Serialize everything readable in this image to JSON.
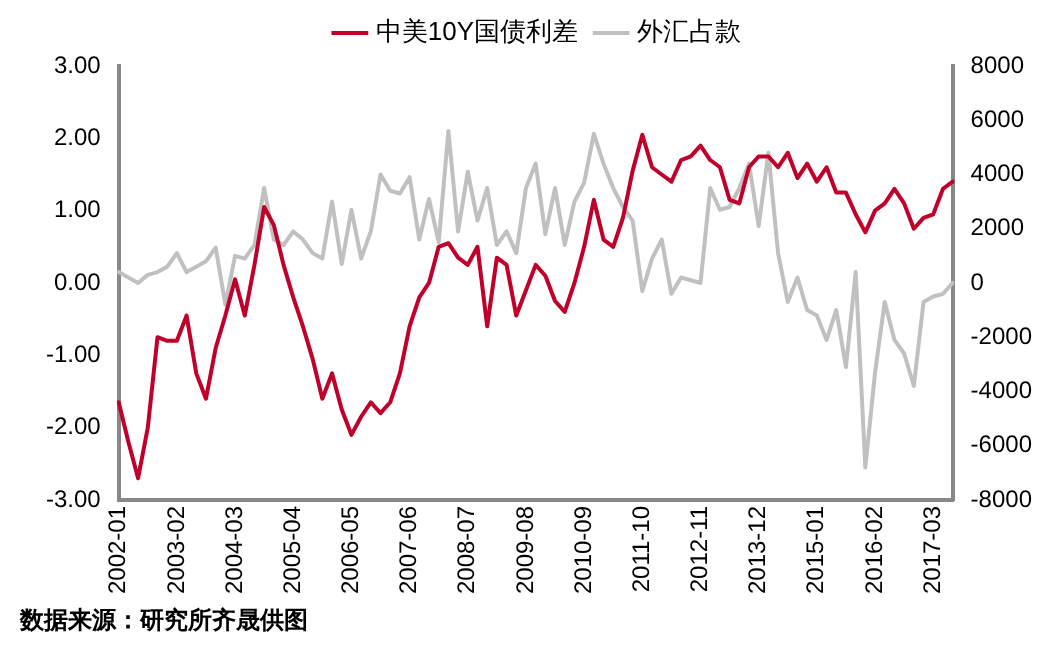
{
  "chart_data": {
    "type": "line",
    "categories": [
      "2002-01",
      null,
      null,
      null,
      null,
      null,
      "2003-02",
      null,
      null,
      null,
      null,
      null,
      "2004-03",
      null,
      null,
      null,
      null,
      null,
      "2005-04",
      null,
      null,
      null,
      null,
      null,
      "2006-05",
      null,
      null,
      null,
      null,
      null,
      "2007-06",
      null,
      null,
      null,
      null,
      null,
      "2008-07",
      null,
      null,
      null,
      null,
      null,
      "2009-08",
      null,
      null,
      null,
      null,
      null,
      "2010-09",
      null,
      null,
      null,
      null,
      null,
      "2011-10",
      null,
      null,
      null,
      null,
      null,
      "2012-11",
      null,
      null,
      null,
      null,
      null,
      "2013-12",
      null,
      null,
      null,
      null,
      null,
      "2015-01",
      null,
      null,
      null,
      null,
      null,
      "2016-02",
      null,
      null,
      null,
      null,
      null,
      "2017-03",
      null,
      null
    ],
    "series": [
      {
        "name": "中美10Y国债利差",
        "color": "#c0002a",
        "values": [
          -1.65,
          -2.2,
          -2.7,
          -2.0,
          -0.75,
          -0.8,
          -0.8,
          -0.45,
          -1.25,
          -1.6,
          -0.9,
          -0.45,
          0.05,
          -0.45,
          0.25,
          1.05,
          0.8,
          0.25,
          -0.2,
          -0.6,
          -1.05,
          -1.6,
          -1.25,
          -1.75,
          -2.1,
          -1.85,
          -1.65,
          -1.8,
          -1.65,
          -1.25,
          -0.6,
          -0.2,
          0.0,
          0.5,
          0.55,
          0.35,
          0.25,
          0.5,
          -0.6,
          0.35,
          0.25,
          -0.45,
          -0.1,
          0.25,
          0.1,
          -0.25,
          -0.4,
          0.0,
          0.5,
          1.15,
          0.6,
          0.5,
          0.9,
          1.55,
          2.05,
          1.6,
          1.5,
          1.4,
          1.7,
          1.75,
          1.9,
          1.7,
          1.6,
          1.15,
          1.1,
          1.6,
          1.75,
          1.75,
          1.6,
          1.8,
          1.45,
          1.65,
          1.4,
          1.6,
          1.25,
          1.25,
          0.95,
          0.7,
          1.0,
          1.1,
          1.3,
          1.1,
          0.75,
          0.9,
          0.95,
          1.3,
          1.4
        ]
      },
      {
        "name": "外汇占款",
        "color": "#c0c0c0",
        "axis": "y2",
        "values": [
          400,
          200,
          0,
          300,
          400,
          600,
          1100,
          400,
          600,
          800,
          1300,
          -800,
          1000,
          900,
          1400,
          3500,
          1600,
          1400,
          1900,
          1600,
          1100,
          900,
          3000,
          700,
          2700,
          900,
          1900,
          4000,
          3400,
          3300,
          3900,
          1600,
          3100,
          1500,
          5600,
          1900,
          4100,
          2300,
          3500,
          1400,
          1900,
          1100,
          3500,
          4400,
          1800,
          3500,
          1400,
          3000,
          3700,
          5500,
          4400,
          3500,
          2800,
          2300,
          -300,
          900,
          1600,
          -400,
          200,
          100,
          0,
          3500,
          2700,
          2800,
          3500,
          4400,
          2100,
          4800,
          1100,
          -700,
          200,
          -1000,
          -1200,
          -2100,
          -1000,
          -3100,
          400,
          -6800,
          -3300,
          -700,
          -2100,
          -2600,
          -3800,
          -700,
          -500,
          -400,
          0
        ]
      }
    ],
    "ylim": [
      -3,
      3
    ],
    "yticks": [
      {
        "value": -3,
        "label": "-3.00"
      },
      {
        "value": -2,
        "label": "-2.00"
      },
      {
        "value": -1,
        "label": "-1.00"
      },
      {
        "value": 0,
        "label": "0.00"
      },
      {
        "value": 1,
        "label": "1.00"
      },
      {
        "value": 2,
        "label": "2.00"
      },
      {
        "value": 3,
        "label": "3.00"
      }
    ],
    "y2lim": [
      -8000,
      8000
    ],
    "y2ticks": [
      -8000,
      -6000,
      -4000,
      -2000,
      0,
      2000,
      4000,
      6000,
      8000
    ],
    "legend": "top",
    "grid": false,
    "marker": "none",
    "line_style": "solid",
    "annotations": [
      "数据来源：研究所齐晟供图"
    ]
  }
}
